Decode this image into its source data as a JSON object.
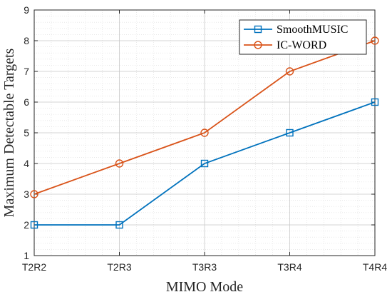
{
  "chart_data": {
    "type": "line",
    "categories": [
      "T2R2",
      "T2R3",
      "T3R3",
      "T3R4",
      "T4R4"
    ],
    "series": [
      {
        "name": "SmoothMUSIC",
        "values": [
          2,
          2,
          4,
          5,
          6
        ],
        "color": "#0072bd",
        "marker": "square"
      },
      {
        "name": "IC-WORD",
        "values": [
          3,
          4,
          5,
          7,
          8
        ],
        "color": "#d95319",
        "marker": "circle"
      }
    ],
    "title": "",
    "xlabel": "MIMO Mode",
    "ylabel": "Maximum Detectable Targets",
    "ylim": [
      1,
      9
    ],
    "yticks": [
      1,
      2,
      3,
      4,
      5,
      6,
      7,
      8,
      9
    ],
    "grid": "on (major and minor)",
    "legend_position": "top-right"
  }
}
